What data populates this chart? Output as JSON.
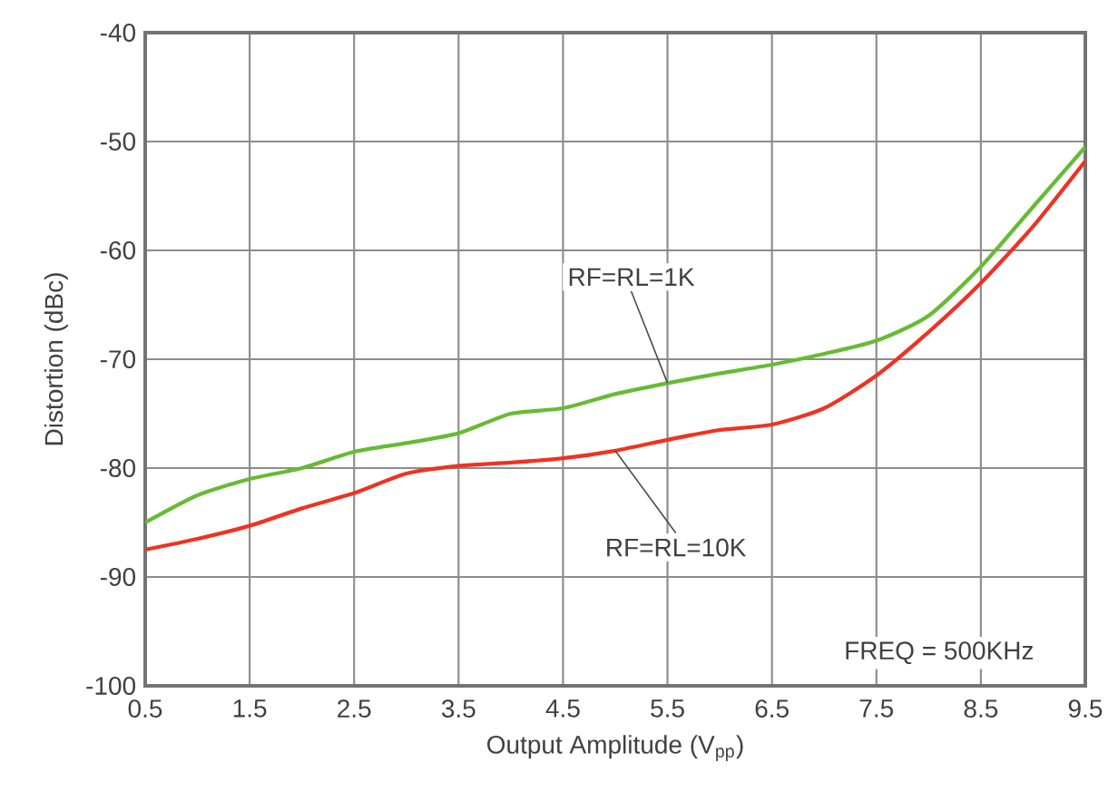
{
  "chart_data": {
    "type": "line",
    "xlabel": "Output Amplitude (V$_{pp}$)",
    "ylabel": "Distortion (dBc)",
    "x": [
      0.5,
      1,
      1.5,
      2,
      2.5,
      3,
      3.5,
      4,
      4.5,
      5,
      5.5,
      6,
      6.5,
      7,
      7.5,
      8,
      8.5,
      9,
      9.5
    ],
    "series": [
      {
        "color": "#66bb33",
        "values": [
          -85,
          -82.5,
          -81,
          -80,
          -78.5,
          -77.7,
          -76.8,
          -75,
          -74.5,
          -73.2,
          -72.2,
          -71.3,
          -70.5,
          -69.5,
          -68.3,
          -66,
          -61.5,
          -56,
          -50.5
        ]
      },
      {
        "color": "#ee3322",
        "values": [
          -87.5,
          -86.5,
          -85.3,
          -83.7,
          -82.3,
          -80.5,
          -79.8,
          -79.5,
          -79.1,
          -78.4,
          -77.4,
          -76.5,
          -76,
          -74.5,
          -71.5,
          -67.5,
          -63,
          -57.8,
          -51.8
        ]
      }
    ],
    "annotations": [
      {
        "text": "RF=RL=1K",
        "x": 5.5,
        "y": -72.2
      },
      {
        "text": "RF=RL=10K",
        "x": 5,
        "y": -78.4
      },
      "FREQ = 500KHz"
    ],
    "xlim": [
      0.5,
      9.5
    ],
    "ylim": [
      -100,
      -40
    ],
    "xticks": [
      0.5,
      1.5,
      2.5,
      3.5,
      4.5,
      5.5,
      6.5,
      7.5,
      8.5,
      9.5
    ],
    "yticks": [
      -100,
      -90,
      -80,
      -70,
      -60,
      -50,
      -40
    ],
    "grid": true,
    "line_style": "solid",
    "marker": "none"
  }
}
